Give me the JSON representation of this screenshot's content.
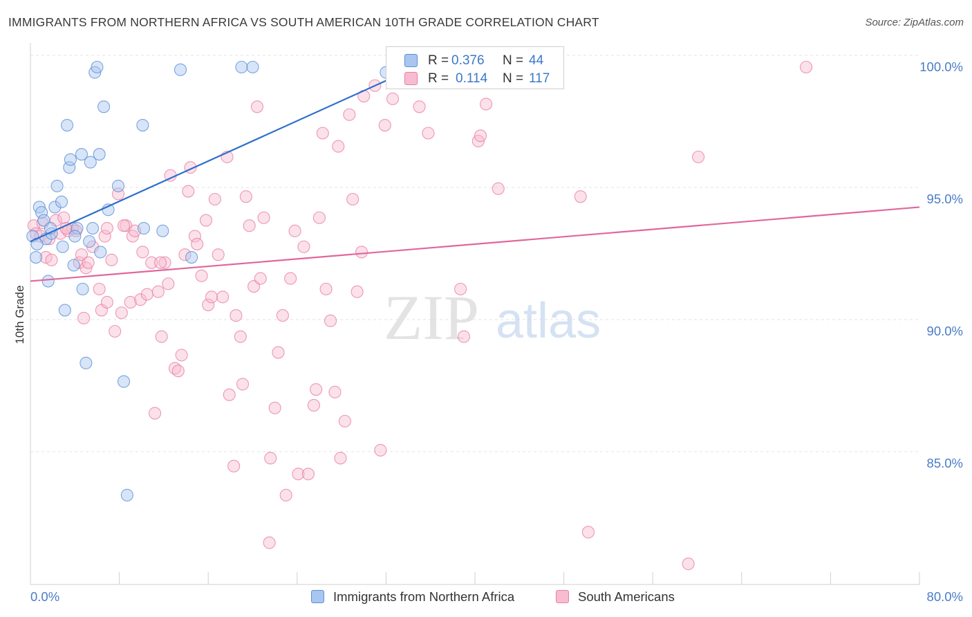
{
  "header": {
    "title": "IMMIGRANTS FROM NORTHERN AFRICA VS SOUTH AMERICAN 10TH GRADE CORRELATION CHART",
    "source": "Source: ZipAtlas.com"
  },
  "watermark": {
    "zip": "ZIP",
    "atlas": "atlas"
  },
  "legend": {
    "r_label": "R =",
    "n_label": "N =",
    "series": [
      {
        "name": "Immigrants from Northern Africa",
        "r": "0.376",
        "n": "44",
        "color": "#a9c6f0",
        "edge": "#5b8fd6"
      },
      {
        "name": "South Americans",
        "r": "0.114",
        "n": "117",
        "color": "#f7bcd0",
        "edge": "#e87fa3"
      }
    ]
  },
  "chart_data": {
    "type": "scatter",
    "title": "IMMIGRANTS FROM NORTHERN AFRICA VS SOUTH AMERICAN 10TH GRADE CORRELATION CHART",
    "xlabel": "",
    "ylabel": "10th Grade",
    "xlim": [
      0,
      80
    ],
    "ylim": [
      80.5,
      100.5
    ],
    "x_tick_labels": [
      "0.0%",
      "80.0%"
    ],
    "y_tick_labels": [
      "100.0%",
      "95.0%",
      "90.0%",
      "85.0%"
    ],
    "y_tick_values": [
      100,
      95,
      90,
      85
    ],
    "grid": "horizontal dashed",
    "legend_placement": "top-center",
    "series": [
      {
        "name": "Immigrants from Northern Africa",
        "color": "#5b8fd6",
        "trendline": {
          "x": [
            0,
            32.6
          ],
          "y": [
            93.4,
            99.6
          ]
        },
        "points": [
          [
            0.2,
            93.6
          ],
          [
            0.5,
            92.8
          ],
          [
            0.8,
            94.7
          ],
          [
            1.0,
            94.5
          ],
          [
            1.2,
            94.2
          ],
          [
            1.4,
            93.5
          ],
          [
            1.6,
            91.9
          ],
          [
            1.9,
            93.7
          ],
          [
            2.2,
            94.7
          ],
          [
            2.4,
            95.5
          ],
          [
            2.8,
            94.9
          ],
          [
            2.9,
            93.2
          ],
          [
            3.1,
            90.8
          ],
          [
            3.3,
            97.8
          ],
          [
            3.5,
            96.2
          ],
          [
            3.6,
            96.5
          ],
          [
            3.9,
            92.5
          ],
          [
            4.2,
            93.9
          ],
          [
            4.6,
            96.7
          ],
          [
            4.7,
            91.6
          ],
          [
            5.0,
            88.8
          ],
          [
            5.3,
            93.4
          ],
          [
            5.4,
            96.4
          ],
          [
            5.6,
            93.9
          ],
          [
            5.8,
            99.8
          ],
          [
            6.0,
            100.0
          ],
          [
            6.2,
            96.7
          ],
          [
            6.3,
            93.0
          ],
          [
            6.6,
            98.5
          ],
          [
            7.0,
            94.6
          ],
          [
            7.9,
            95.5
          ],
          [
            8.4,
            88.1
          ],
          [
            8.7,
            83.8
          ],
          [
            10.1,
            97.8
          ],
          [
            10.2,
            93.9
          ],
          [
            11.9,
            93.8
          ],
          [
            13.5,
            99.9
          ],
          [
            14.5,
            92.8
          ],
          [
            19.0,
            100.0
          ],
          [
            20.0,
            100.0
          ],
          [
            32.0,
            99.8
          ],
          [
            0.6,
            93.3
          ],
          [
            1.8,
            93.9
          ],
          [
            4.0,
            93.6
          ]
        ]
      },
      {
        "name": "South Americans",
        "color": "#e87fa3",
        "trendline": {
          "x": [
            0,
            80
          ],
          "y": [
            91.9,
            94.7
          ]
        },
        "points": [
          [
            0.3,
            94.0
          ],
          [
            0.5,
            93.7
          ],
          [
            0.9,
            93.6
          ],
          [
            1.1,
            94.1
          ],
          [
            1.4,
            92.8
          ],
          [
            1.7,
            93.5
          ],
          [
            1.9,
            92.7
          ],
          [
            2.3,
            94.2
          ],
          [
            2.7,
            93.7
          ],
          [
            3.0,
            94.3
          ],
          [
            3.4,
            93.8
          ],
          [
            3.8,
            93.9
          ],
          [
            4.1,
            93.8
          ],
          [
            4.4,
            92.6
          ],
          [
            4.6,
            92.9
          ],
          [
            4.8,
            90.5
          ],
          [
            5.0,
            92.4
          ],
          [
            5.2,
            92.6
          ],
          [
            5.6,
            93.2
          ],
          [
            6.2,
            91.6
          ],
          [
            6.4,
            90.8
          ],
          [
            6.7,
            93.6
          ],
          [
            6.9,
            91.1
          ],
          [
            7.3,
            92.7
          ],
          [
            7.6,
            90.0
          ],
          [
            7.9,
            95.2
          ],
          [
            8.2,
            90.7
          ],
          [
            8.6,
            94.0
          ],
          [
            9.0,
            91.1
          ],
          [
            9.2,
            93.6
          ],
          [
            9.4,
            93.8
          ],
          [
            9.9,
            91.2
          ],
          [
            10.1,
            93.0
          ],
          [
            10.5,
            91.4
          ],
          [
            10.9,
            92.6
          ],
          [
            11.2,
            86.9
          ],
          [
            11.5,
            91.5
          ],
          [
            11.8,
            89.8
          ],
          [
            12.1,
            92.6
          ],
          [
            12.4,
            91.8
          ],
          [
            12.6,
            95.9
          ],
          [
            13.0,
            88.6
          ],
          [
            13.3,
            88.5
          ],
          [
            13.6,
            89.1
          ],
          [
            13.9,
            92.9
          ],
          [
            14.2,
            95.3
          ],
          [
            14.4,
            96.2
          ],
          [
            14.8,
            93.6
          ],
          [
            15.0,
            93.3
          ],
          [
            15.4,
            92.1
          ],
          [
            15.8,
            94.2
          ],
          [
            16.0,
            91.0
          ],
          [
            16.3,
            91.3
          ],
          [
            16.6,
            95.0
          ],
          [
            16.9,
            92.9
          ],
          [
            17.3,
            91.3
          ],
          [
            17.7,
            96.6
          ],
          [
            17.9,
            87.6
          ],
          [
            18.5,
            90.6
          ],
          [
            18.9,
            89.8
          ],
          [
            19.1,
            88.0
          ],
          [
            19.4,
            95.1
          ],
          [
            19.7,
            94.0
          ],
          [
            20.1,
            91.7
          ],
          [
            20.4,
            98.5
          ],
          [
            20.7,
            92.0
          ],
          [
            21.0,
            94.3
          ],
          [
            21.6,
            85.2
          ],
          [
            22.0,
            87.1
          ],
          [
            22.3,
            89.2
          ],
          [
            22.7,
            90.6
          ],
          [
            23.0,
            83.8
          ],
          [
            23.4,
            92.0
          ],
          [
            23.8,
            93.8
          ],
          [
            24.1,
            84.6
          ],
          [
            24.6,
            93.2
          ],
          [
            25.0,
            84.6
          ],
          [
            25.5,
            87.2
          ],
          [
            25.7,
            87.8
          ],
          [
            26.0,
            94.3
          ],
          [
            26.3,
            97.5
          ],
          [
            26.6,
            91.6
          ],
          [
            27.0,
            90.4
          ],
          [
            27.4,
            87.7
          ],
          [
            27.7,
            97.0
          ],
          [
            27.9,
            85.2
          ],
          [
            28.3,
            86.6
          ],
          [
            28.7,
            98.2
          ],
          [
            29.0,
            95.0
          ],
          [
            29.4,
            91.5
          ],
          [
            29.8,
            93.0
          ],
          [
            30.0,
            98.9
          ],
          [
            31.0,
            99.3
          ],
          [
            31.5,
            85.5
          ],
          [
            31.9,
            97.8
          ],
          [
            32.6,
            98.8
          ],
          [
            33.1,
            100.0
          ],
          [
            35.0,
            98.5
          ],
          [
            35.8,
            97.5
          ],
          [
            36.5,
            99.7
          ],
          [
            38.7,
            91.6
          ],
          [
            39.0,
            89.8
          ],
          [
            40.3,
            97.2
          ],
          [
            40.5,
            97.4
          ],
          [
            41.0,
            98.6
          ],
          [
            42.1,
            95.4
          ],
          [
            49.5,
            95.1
          ],
          [
            50.2,
            82.4
          ],
          [
            60.1,
            96.6
          ],
          [
            69.8,
            100.0
          ],
          [
            59.2,
            81.2
          ],
          [
            21.5,
            82.0
          ],
          [
            18.3,
            84.9
          ],
          [
            11.7,
            92.6
          ],
          [
            6.9,
            93.9
          ],
          [
            8.4,
            94.0
          ],
          [
            3.2,
            93.9
          ]
        ]
      }
    ]
  }
}
